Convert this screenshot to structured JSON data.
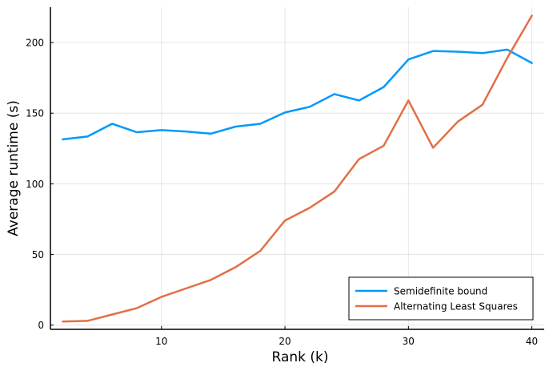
{
  "chart_data": {
    "type": "line",
    "title": "",
    "xlabel": "Rank (k)",
    "ylabel": "Average runtime (s)",
    "xlim": [
      1,
      41
    ],
    "ylim": [
      -3,
      225
    ],
    "xticks": [
      10,
      20,
      30,
      40
    ],
    "yticks": [
      0,
      50,
      100,
      150,
      200
    ],
    "grid": true,
    "legend_position": "bottom-right",
    "x": [
      2,
      4,
      6,
      8,
      10,
      12,
      14,
      16,
      18,
      20,
      22,
      24,
      26,
      28,
      30,
      32,
      34,
      36,
      38,
      40
    ],
    "series": [
      {
        "name": "Semidefinite bound",
        "color": "#009af9",
        "values": [
          131.5,
          133.5,
          142.5,
          136.5,
          138,
          137,
          135.5,
          140.5,
          142.5,
          150.5,
          154.5,
          163.5,
          159,
          168.5,
          188,
          194,
          193.5,
          192.5,
          195,
          185.5
        ]
      },
      {
        "name": "Alternating Least Squares",
        "color": "#e26f46",
        "values": [
          2.5,
          3,
          7.5,
          12,
          20,
          26,
          32,
          41,
          52.5,
          74,
          83,
          94.5,
          117.5,
          127,
          159,
          125.5,
          144,
          156,
          189,
          219
        ]
      }
    ]
  }
}
